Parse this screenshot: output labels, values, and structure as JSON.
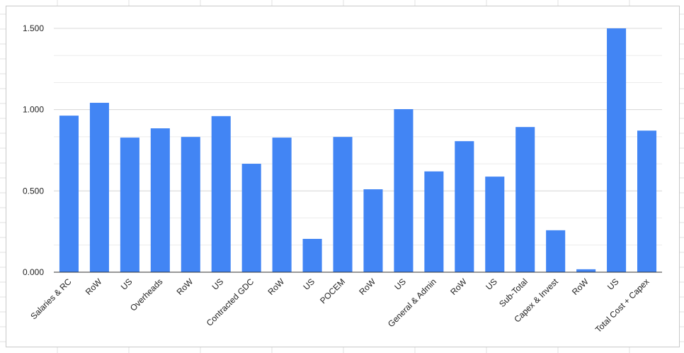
{
  "chart_data": {
    "type": "bar",
    "categories": [
      "Salaries & RC",
      "RoW",
      "US",
      "Overheads",
      "RoW",
      "US",
      "Contracted GDC",
      "RoW",
      "US",
      "POCEM",
      "RoW",
      "US",
      "General & Admin",
      "RoW",
      "US",
      "Sub-Total",
      "Capex & Invest",
      "RoW",
      "US",
      "Total Cost + Capex"
    ],
    "values": [
      0.963,
      1.042,
      0.828,
      0.885,
      0.832,
      0.96,
      0.667,
      0.828,
      0.205,
      0.832,
      0.51,
      1.003,
      0.62,
      0.806,
      0.588,
      0.893,
      0.258,
      0.018,
      1.5,
      0.871
    ],
    "ylim": [
      0,
      1.5
    ],
    "yticks": [
      "0.000",
      "0.500",
      "1.000",
      "1.500"
    ],
    "ytick_values": [
      0,
      0.5,
      1.0,
      1.5
    ],
    "title": "",
    "xlabel": "",
    "ylabel": "",
    "grid": true,
    "colors": {
      "bar": "#4285f4",
      "grid": "#d9d9d9",
      "axis": "#333333"
    }
  }
}
